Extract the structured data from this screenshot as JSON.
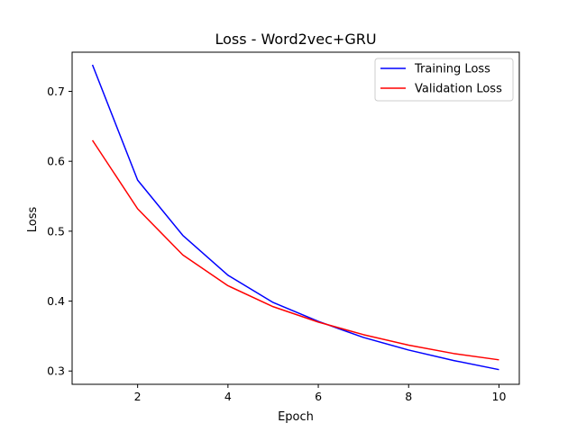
{
  "chart_data": {
    "type": "line",
    "title": "Loss - Word2vec+GRU",
    "xlabel": "Epoch",
    "ylabel": "Loss",
    "xlim": [
      0.55,
      10.45
    ],
    "ylim": [
      0.281,
      0.756
    ],
    "xticks": [
      2,
      4,
      6,
      8,
      10
    ],
    "yticks": [
      0.3,
      0.4,
      0.5,
      0.6,
      0.7
    ],
    "ytick_labels": [
      "0.3",
      "0.4",
      "0.5",
      "0.6",
      "0.7"
    ],
    "grid": false,
    "legend_position": "upper right",
    "x": [
      1,
      2,
      3,
      4,
      5,
      6,
      7,
      8,
      9,
      10
    ],
    "series": [
      {
        "name": "Training Loss",
        "color": "#0000ff",
        "values": [
          0.738,
          0.573,
          0.494,
          0.437,
          0.398,
          0.371,
          0.348,
          0.33,
          0.315,
          0.302
        ]
      },
      {
        "name": "Validation Loss",
        "color": "#ff0000",
        "values": [
          0.63,
          0.532,
          0.466,
          0.422,
          0.392,
          0.37,
          0.352,
          0.337,
          0.325,
          0.316
        ]
      }
    ]
  }
}
